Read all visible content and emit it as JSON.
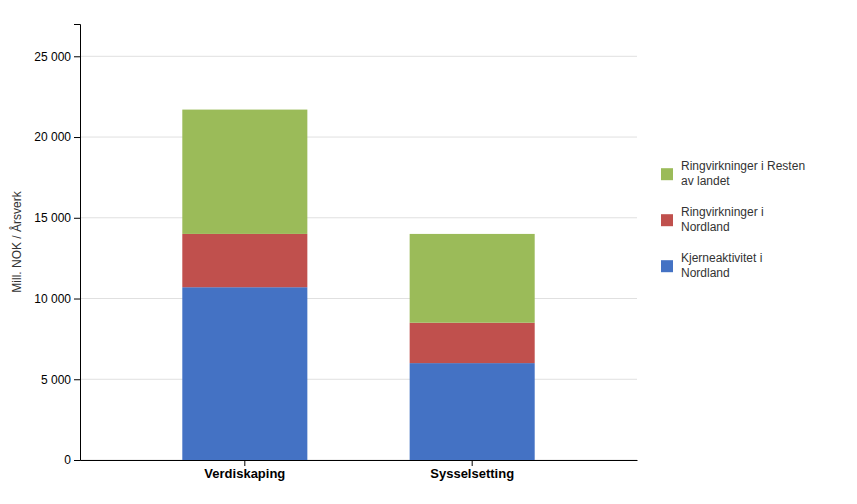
{
  "chart_data": {
    "type": "bar",
    "stacked": true,
    "categories": [
      "Verdiskaping",
      "Sysselsetting"
    ],
    "series": [
      {
        "name": "Kjerneaktivitet i\nNordland",
        "color": "#4472C4",
        "values": [
          10700,
          6000
        ]
      },
      {
        "name": "Ringvirkninger i\nNordland",
        "color": "#C0504D",
        "values": [
          3300,
          2500
        ]
      },
      {
        "name": "Ringvirkninger i Resten\nav landet",
        "color": "#9BBB59",
        "values": [
          7700,
          5500
        ]
      }
    ],
    "ylabel": "Mill. NOK / Årsverk",
    "ylim": [
      0,
      27000
    ],
    "yticks": [
      0,
      {
        "value": 5000,
        "label": "5 000"
      },
      {
        "value": 10000,
        "label": "10 000"
      },
      {
        "value": 15000,
        "label": "15 000"
      },
      {
        "value": 20000,
        "label": "20 000"
      },
      {
        "value": 25000,
        "label": "25 000"
      }
    ],
    "grid": true,
    "legend": "right"
  }
}
